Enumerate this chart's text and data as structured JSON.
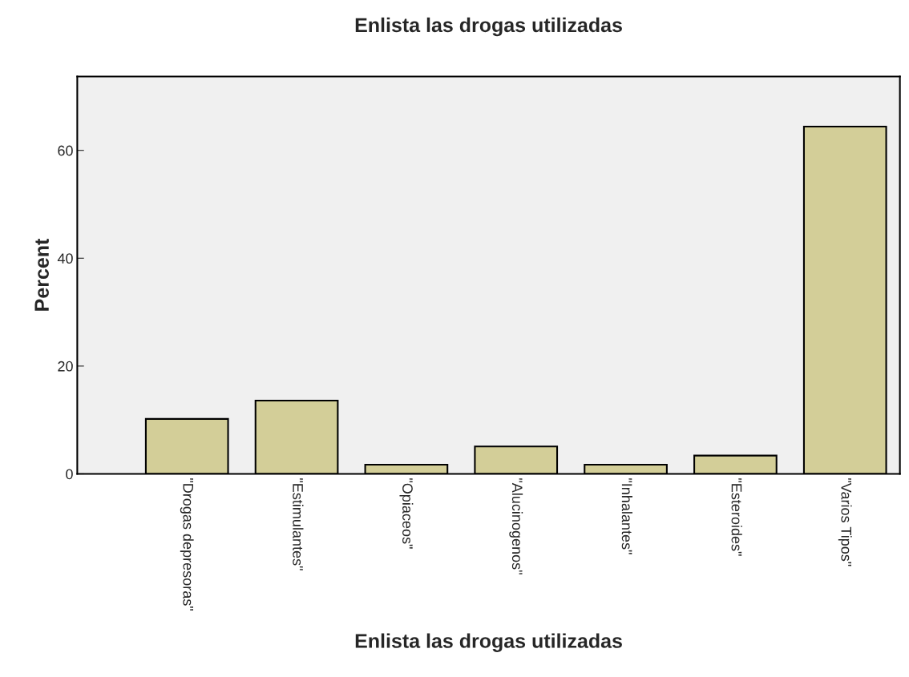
{
  "chart_data": {
    "type": "bar",
    "title": "Enlista las drogas utilizadas",
    "xlabel": "Enlista las drogas utilizadas",
    "ylabel": "Percent",
    "categories": [
      "\"Drogas depresoras\"",
      "\"Estimulantes\"",
      "\"Opiaceos\"",
      "\"Alucinogenos\"",
      "\"Inhalantes\"",
      "\"Esteroides\"",
      "\"Varios Tipos\""
    ],
    "values": [
      10.2,
      13.6,
      1.7,
      5.1,
      1.7,
      3.4,
      64.4
    ],
    "color": "#d3ce98",
    "ylim": [
      0,
      73.7
    ],
    "yticks": [
      0,
      20,
      40,
      60
    ],
    "grid": false
  }
}
